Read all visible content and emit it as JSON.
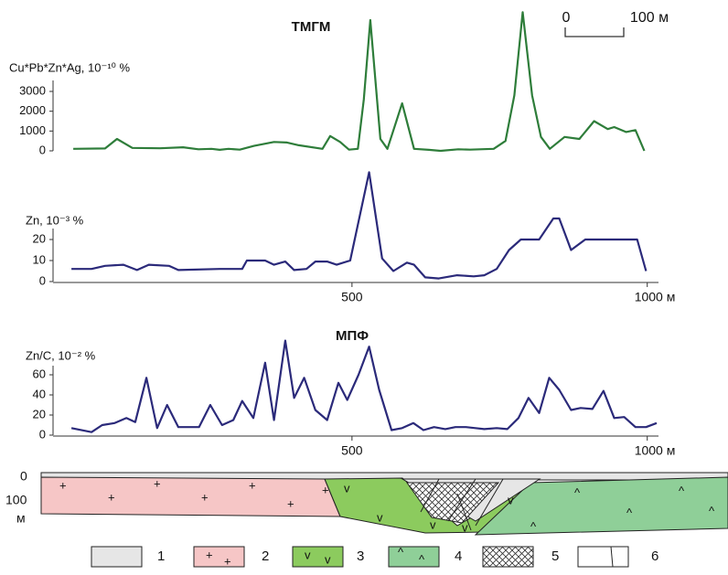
{
  "chart_data": [
    {
      "type": "line",
      "title": "ТМГМ",
      "y_label": "Cu*Pb*Zn*Ag, 10⁻¹⁰ %",
      "color": "#2e7d3a",
      "x": [
        28,
        82,
        102,
        128,
        175,
        214,
        240,
        262,
        276,
        291,
        310,
        334,
        368,
        390,
        410,
        450,
        463,
        480,
        495,
        510,
        520,
        531,
        548,
        560,
        585,
        605,
        630,
        650,
        680,
        700,
        740,
        760,
        775,
        789,
        805,
        820,
        835,
        860,
        885,
        910,
        933,
        944,
        964,
        980,
        995
      ],
      "values": [
        100,
        120,
        600,
        150,
        130,
        180,
        80,
        100,
        50,
        100,
        60,
        250,
        450,
        420,
        280,
        100,
        750,
        450,
        60,
        100,
        2600,
        6600,
        600,
        100,
        2400,
        100,
        50,
        0,
        80,
        60,
        100,
        500,
        2800,
        7000,
        2800,
        700,
        100,
        700,
        600,
        1500,
        1100,
        1200,
        950,
        1050,
        0
      ],
      "xlim": [
        0,
        1050
      ],
      "ylim": [
        0,
        7200
      ],
      "yticks": [
        0,
        1000,
        2000,
        3000
      ]
    },
    {
      "type": "line",
      "y_label": "Zn, 10⁻³ %",
      "color": "#2b2a7a",
      "x": [
        25,
        59,
        82,
        113,
        136,
        156,
        190,
        206,
        276,
        314,
        322,
        353,
        368,
        387,
        402,
        423,
        438,
        458,
        474,
        497,
        529,
        551,
        570,
        593,
        605,
        624,
        647,
        678,
        706,
        724,
        745,
        766,
        786,
        817,
        841,
        851,
        871,
        895,
        983,
        998
      ],
      "values": [
        6,
        6,
        7.5,
        8,
        5.5,
        8,
        7.5,
        5.5,
        6,
        6,
        10,
        10,
        8,
        9.5,
        5.5,
        6,
        9.5,
        9.5,
        8,
        10,
        52,
        11,
        5,
        9,
        8,
        2,
        1.5,
        3,
        2.5,
        3,
        6,
        15,
        20,
        20,
        30,
        30,
        15,
        20,
        20,
        5
      ],
      "xlim": [
        0,
        1050
      ],
      "ylim": [
        0,
        55
      ],
      "yticks": [
        0,
        10,
        20
      ],
      "xticks": [
        500,
        {
          "value": 1000,
          "label": "1000 м"
        }
      ]
    },
    {
      "type": "line",
      "title": "МПФ",
      "y_label": "Zn/C, 10⁻² %",
      "color": "#2b2a7a",
      "x": [
        25,
        59,
        77,
        98,
        118,
        133,
        152,
        170,
        187,
        206,
        241,
        260,
        280,
        299,
        314,
        333,
        353,
        368,
        387,
        402,
        419,
        438,
        458,
        477,
        492,
        511,
        529,
        546,
        567,
        585,
        604,
        621,
        639,
        658,
        675,
        693,
        709,
        724,
        745,
        763,
        782,
        799,
        817,
        834,
        851,
        871,
        887,
        907,
        926,
        944,
        961,
        980,
        998,
        1016
      ],
      "values": [
        7,
        3,
        10,
        12,
        17,
        13,
        57,
        7,
        30,
        8,
        8,
        30,
        10,
        15,
        34,
        17,
        72,
        15,
        94,
        37,
        57,
        25,
        15,
        52,
        35,
        60,
        88,
        45,
        5,
        7,
        12,
        5,
        8,
        6,
        8,
        8,
        7,
        6,
        7,
        6,
        17,
        37,
        22,
        57,
        45,
        25,
        27,
        26,
        44,
        17,
        18,
        8,
        8,
        12
      ],
      "xlim": [
        0,
        1050
      ],
      "ylim": [
        0,
        100
      ],
      "yticks": [
        0,
        20,
        40,
        60
      ],
      "xticks": [
        500,
        {
          "value": 1000,
          "label": "1000 м"
        }
      ]
    }
  ],
  "scale_bar": {
    "start": "0",
    "end": "100 м"
  },
  "section": {
    "depth_top": "0",
    "depth_bottom": "100",
    "depth_unit": "м",
    "legend": [
      "1",
      "2",
      "3",
      "4",
      "5",
      "6"
    ]
  }
}
